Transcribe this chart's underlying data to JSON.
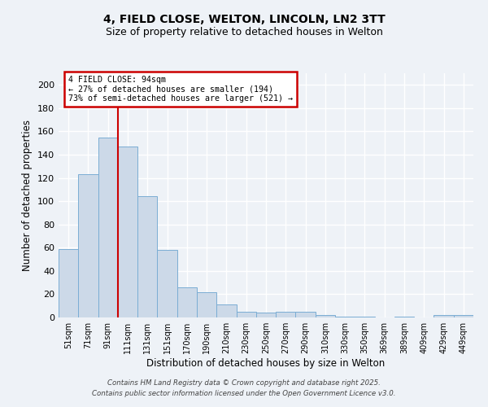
{
  "title_line1": "4, FIELD CLOSE, WELTON, LINCOLN, LN2 3TT",
  "title_line2": "Size of property relative to detached houses in Welton",
  "categories": [
    "51sqm",
    "71sqm",
    "91sqm",
    "111sqm",
    "131sqm",
    "151sqm",
    "170sqm",
    "190sqm",
    "210sqm",
    "230sqm",
    "250sqm",
    "270sqm",
    "290sqm",
    "310sqm",
    "330sqm",
    "350sqm",
    "369sqm",
    "389sqm",
    "409sqm",
    "429sqm",
    "449sqm"
  ],
  "values": [
    59,
    123,
    155,
    147,
    104,
    58,
    26,
    22,
    11,
    5,
    4,
    5,
    5,
    2,
    1,
    1,
    0,
    1,
    0,
    2,
    2
  ],
  "bar_color": "#ccd9e8",
  "bar_edge_color": "#7aadd4",
  "xlabel": "Distribution of detached houses by size in Welton",
  "ylabel": "Number of detached properties",
  "ylim": [
    0,
    210
  ],
  "yticks": [
    0,
    20,
    40,
    60,
    80,
    100,
    120,
    140,
    160,
    180,
    200
  ],
  "vline_x": 2.5,
  "vline_color": "#cc0000",
  "annotation_title": "4 FIELD CLOSE: 94sqm",
  "annotation_line2": "← 27% of detached houses are smaller (194)",
  "annotation_line3": "73% of semi-detached houses are larger (521) →",
  "annotation_box_facecolor": "#ffffff",
  "annotation_box_edgecolor": "#cc0000",
  "footer_line1": "Contains HM Land Registry data © Crown copyright and database right 2025.",
  "footer_line2": "Contains public sector information licensed under the Open Government Licence v3.0.",
  "background_color": "#eef2f7",
  "grid_color": "#ffffff",
  "grid_lw": 1.0
}
